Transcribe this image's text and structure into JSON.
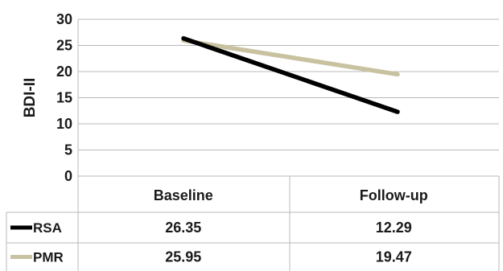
{
  "chart_data": {
    "type": "line",
    "title": "",
    "xlabel": "",
    "ylabel": "BDI-II",
    "ylim": [
      0,
      30
    ],
    "yticks": [
      0,
      5,
      10,
      15,
      20,
      25,
      30
    ],
    "grid": true,
    "legend": "data-table-rows",
    "categories": [
      "Baseline",
      "Follow-up"
    ],
    "series": [
      {
        "name": "RSA",
        "values": [
          26.35,
          12.29
        ],
        "color": "#000000",
        "labels": [
          "26.35",
          "12.29"
        ]
      },
      {
        "name": "PMR",
        "values": [
          25.95,
          19.47
        ],
        "color": "#c8c2a0",
        "labels": [
          "25.95",
          "19.47"
        ]
      }
    ]
  }
}
